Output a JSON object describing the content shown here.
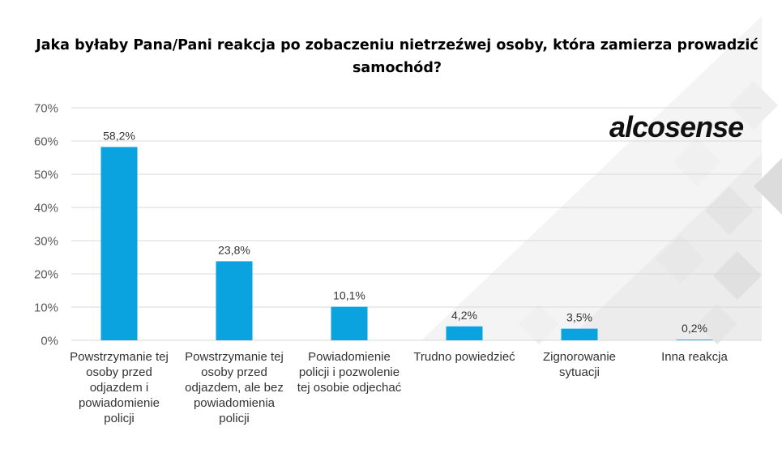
{
  "colors": {
    "bar": "#0aa3df",
    "grid": "#d9d9d9",
    "axis_text": "#595959",
    "label_text": "#333333"
  },
  "logo": {
    "text": "alcosense"
  },
  "chart_data": {
    "type": "bar",
    "title": "Jaka byłaby Pana/Pani reakcja po zobaczeniu nietrzeźwej osoby, która zamierza prowadzić samochód?",
    "xlabel": "",
    "ylabel": "",
    "ylim": [
      0,
      70
    ],
    "yticks": [
      "0%",
      "10%",
      "20%",
      "30%",
      "40%",
      "50%",
      "60%",
      "70%"
    ],
    "grid": true,
    "legend": "none",
    "categories": [
      "Powstrzymanie tej osoby przed odjazdem i powiadomienie policji",
      "Powstrzymanie tej osoby przed odjazdem, ale bez powiadomienia policji",
      "Powiadomienie policji i pozwolenie tej osobie odjechać",
      "Trudno powiedzieć",
      "Zignorowanie sytuacji",
      "Inna reakcja"
    ],
    "values": [
      58.2,
      23.8,
      10.1,
      4.2,
      3.5,
      0.2
    ],
    "value_labels": [
      "58,2%",
      "23,8%",
      "10,1%",
      "4,2%",
      "3,5%",
      "0,2%"
    ]
  }
}
